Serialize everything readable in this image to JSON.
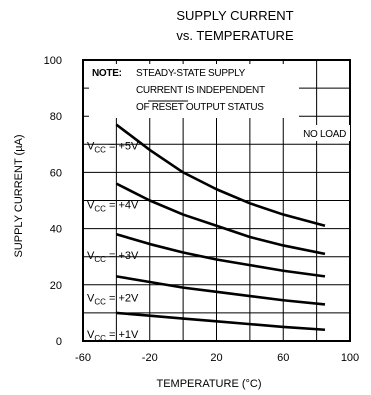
{
  "chart_data": {
    "type": "line",
    "title_line1": "SUPPLY CURRENT",
    "title_line2": "vs. TEMPERATURE",
    "xlabel": "TEMPERATURE (°C)",
    "ylabel": "SUPPLY CURRENT (µA)",
    "xlim": [
      -60,
      100
    ],
    "ylim": [
      0,
      100
    ],
    "x_ticks": [
      -60,
      -20,
      20,
      60,
      100
    ],
    "x_tick_labels": [
      "-60",
      "-20",
      "20",
      "60",
      "100"
    ],
    "y_ticks": [
      0,
      20,
      40,
      60,
      80,
      100
    ],
    "y_tick_labels": [
      "0",
      "20",
      "40",
      "60",
      "80",
      "100"
    ],
    "grid": true,
    "note_label": "NOTE:",
    "note_lines": [
      "STEADY-STATE SUPPLY",
      "CURRENT IS INDEPENDENT",
      "OF RESET OUTPUT STATUS"
    ],
    "no_load_label": "NO LOAD",
    "series": [
      {
        "name": "V_CC = +5V",
        "label_main": "V",
        "label_sub": "CC",
        "label_rest": " = +5V",
        "x": [
          -40,
          -20,
          0,
          20,
          40,
          60,
          85
        ],
        "y": [
          77,
          68,
          60,
          54,
          49,
          45,
          41
        ]
      },
      {
        "name": "V_CC = +4V",
        "label_main": "V",
        "label_sub": "CC",
        "label_rest": " = +4V",
        "x": [
          -40,
          -20,
          0,
          20,
          40,
          60,
          85
        ],
        "y": [
          56,
          50,
          45,
          41,
          37,
          34,
          31
        ]
      },
      {
        "name": "V_CC = +3V",
        "label_main": "V",
        "label_sub": "CC",
        "label_rest": " = +3V",
        "x": [
          -40,
          -20,
          0,
          20,
          40,
          60,
          85
        ],
        "y": [
          38,
          34.5,
          31.5,
          29,
          27,
          25,
          23
        ]
      },
      {
        "name": "V_CC = +2V",
        "label_main": "V",
        "label_sub": "CC",
        "label_rest": " = +2V",
        "x": [
          -40,
          -20,
          0,
          20,
          40,
          60,
          85
        ],
        "y": [
          23,
          21,
          19,
          17.5,
          16,
          14.5,
          13
        ]
      },
      {
        "name": "V_CC = +1V",
        "label_main": "V",
        "label_sub": "CC",
        "label_rest": " = +1V",
        "x": [
          -40,
          -20,
          0,
          20,
          40,
          60,
          85
        ],
        "y": [
          10,
          9,
          8,
          7,
          6,
          5,
          4
        ]
      }
    ]
  }
}
